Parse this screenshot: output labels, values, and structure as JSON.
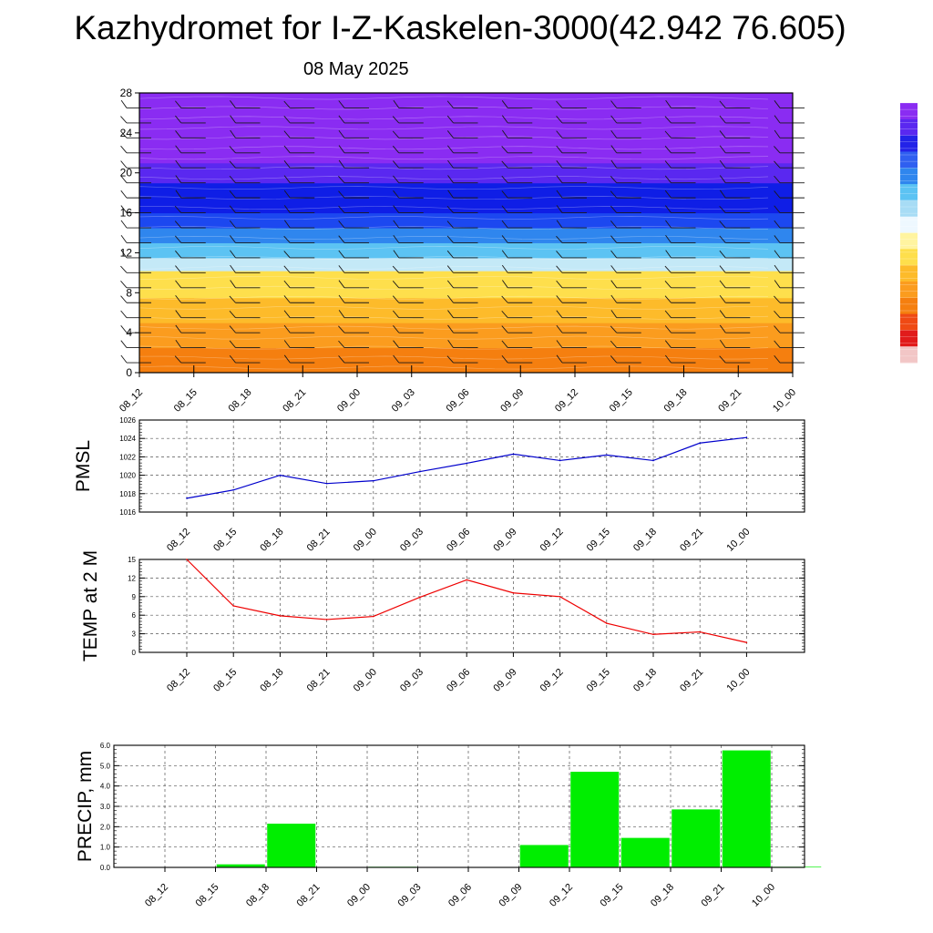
{
  "header": {
    "title": "Kazhydromet for I-Z-Kaskelen-3000(42.942 76.605)",
    "date": "08 May 2025"
  },
  "chart_data": [
    {
      "type": "heatmap",
      "id": "cross-section",
      "x_ticks": [
        "08_12",
        "08_15",
        "08_18",
        "08_21",
        "09_00",
        "09_03",
        "09_06",
        "09_09",
        "09_12",
        "09_15",
        "09_18",
        "09_21",
        "10_00"
      ],
      "y_ticks": [
        "0",
        "4",
        "8",
        "12",
        "16",
        "20",
        "24",
        "28"
      ],
      "ylim": [
        0,
        28
      ],
      "layers": [
        {
          "from": 0,
          "to": 2.5,
          "color": "#f57f0f"
        },
        {
          "from": 2.5,
          "to": 5,
          "color": "#fb9c1e"
        },
        {
          "from": 5,
          "to": 7.5,
          "color": "#fdbb2a"
        },
        {
          "from": 7.5,
          "to": 10.2,
          "color": "#fedf4c"
        },
        {
          "from": 10.2,
          "to": 11.5,
          "color": "#c4e9f7"
        },
        {
          "from": 11.5,
          "to": 13,
          "color": "#5cc3f3"
        },
        {
          "from": 13,
          "to": 14.5,
          "color": "#2f86ee"
        },
        {
          "from": 14.5,
          "to": 16,
          "color": "#1c48f0"
        },
        {
          "from": 16,
          "to": 19,
          "color": "#0f1ee6"
        },
        {
          "from": 19,
          "to": 21,
          "color": "#5a28f0"
        },
        {
          "from": 21,
          "to": 28,
          "color": "#8a2cf2"
        }
      ],
      "colorbar": [
        "#8a2cf2",
        "#5a28f0",
        "#2323e8",
        "#2f5ff0",
        "#2f86ee",
        "#5cc3f3",
        "#a7dcf5",
        "#eef8ff",
        "#fff4a0",
        "#fedf4c",
        "#fdbb2a",
        "#fb9c1e",
        "#f57f0f",
        "#ef4a14",
        "#e11b1b",
        "#f2c6c6"
      ]
    },
    {
      "type": "line",
      "id": "pmsl",
      "ylabel": "PMSL",
      "x": [
        "08_12",
        "08_15",
        "08_18",
        "08_21",
        "09_00",
        "09_03",
        "09_06",
        "09_09",
        "09_12",
        "09_15",
        "09_18",
        "09_21",
        "10_00"
      ],
      "values": [
        1017.5,
        1018.4,
        1020.0,
        1019.1,
        1019.4,
        1020.4,
        1021.3,
        1022.3,
        1021.6,
        1022.2,
        1021.6,
        1023.5,
        1024.1
      ],
      "ylim": [
        1016,
        1026
      ],
      "y_ticks": [
        "1016",
        "1018",
        "1020",
        "1022",
        "1024",
        "1026"
      ],
      "color": "#0000cc",
      "grid": true
    },
    {
      "type": "line",
      "id": "temp",
      "ylabel": "TEMP at 2 M",
      "x": [
        "08_12",
        "08_15",
        "08_18",
        "08_21",
        "09_00",
        "09_03",
        "09_06",
        "09_09",
        "09_12",
        "09_15",
        "09_18",
        "09_21",
        "10_00"
      ],
      "values": [
        15.0,
        7.5,
        5.9,
        5.3,
        5.8,
        8.9,
        11.7,
        9.6,
        9.0,
        4.7,
        2.9,
        3.3,
        1.6
      ],
      "ylim": [
        0,
        15
      ],
      "y_ticks": [
        "0",
        "3",
        "6",
        "9",
        "12",
        "15"
      ],
      "color": "#ee0000",
      "grid": true
    },
    {
      "type": "bar",
      "id": "precip",
      "ylabel": "PRECIP, mm",
      "categories": [
        "08_12",
        "08_15",
        "08_18",
        "08_21",
        "09_00",
        "09_03",
        "09_06",
        "09_09",
        "09_12",
        "09_15",
        "09_18",
        "09_21",
        "10_00"
      ],
      "values": [
        0.0,
        0.15,
        2.15,
        0.0,
        0.03,
        0.0,
        0.0,
        1.1,
        4.7,
        1.45,
        2.85,
        5.75,
        0.03
      ],
      "ylim": [
        0,
        6
      ],
      "y_ticks": [
        "0.0",
        "1.0",
        "2.0",
        "3.0",
        "4.0",
        "5.0",
        "6.0"
      ],
      "color": "#00ee00",
      "grid": true
    }
  ]
}
